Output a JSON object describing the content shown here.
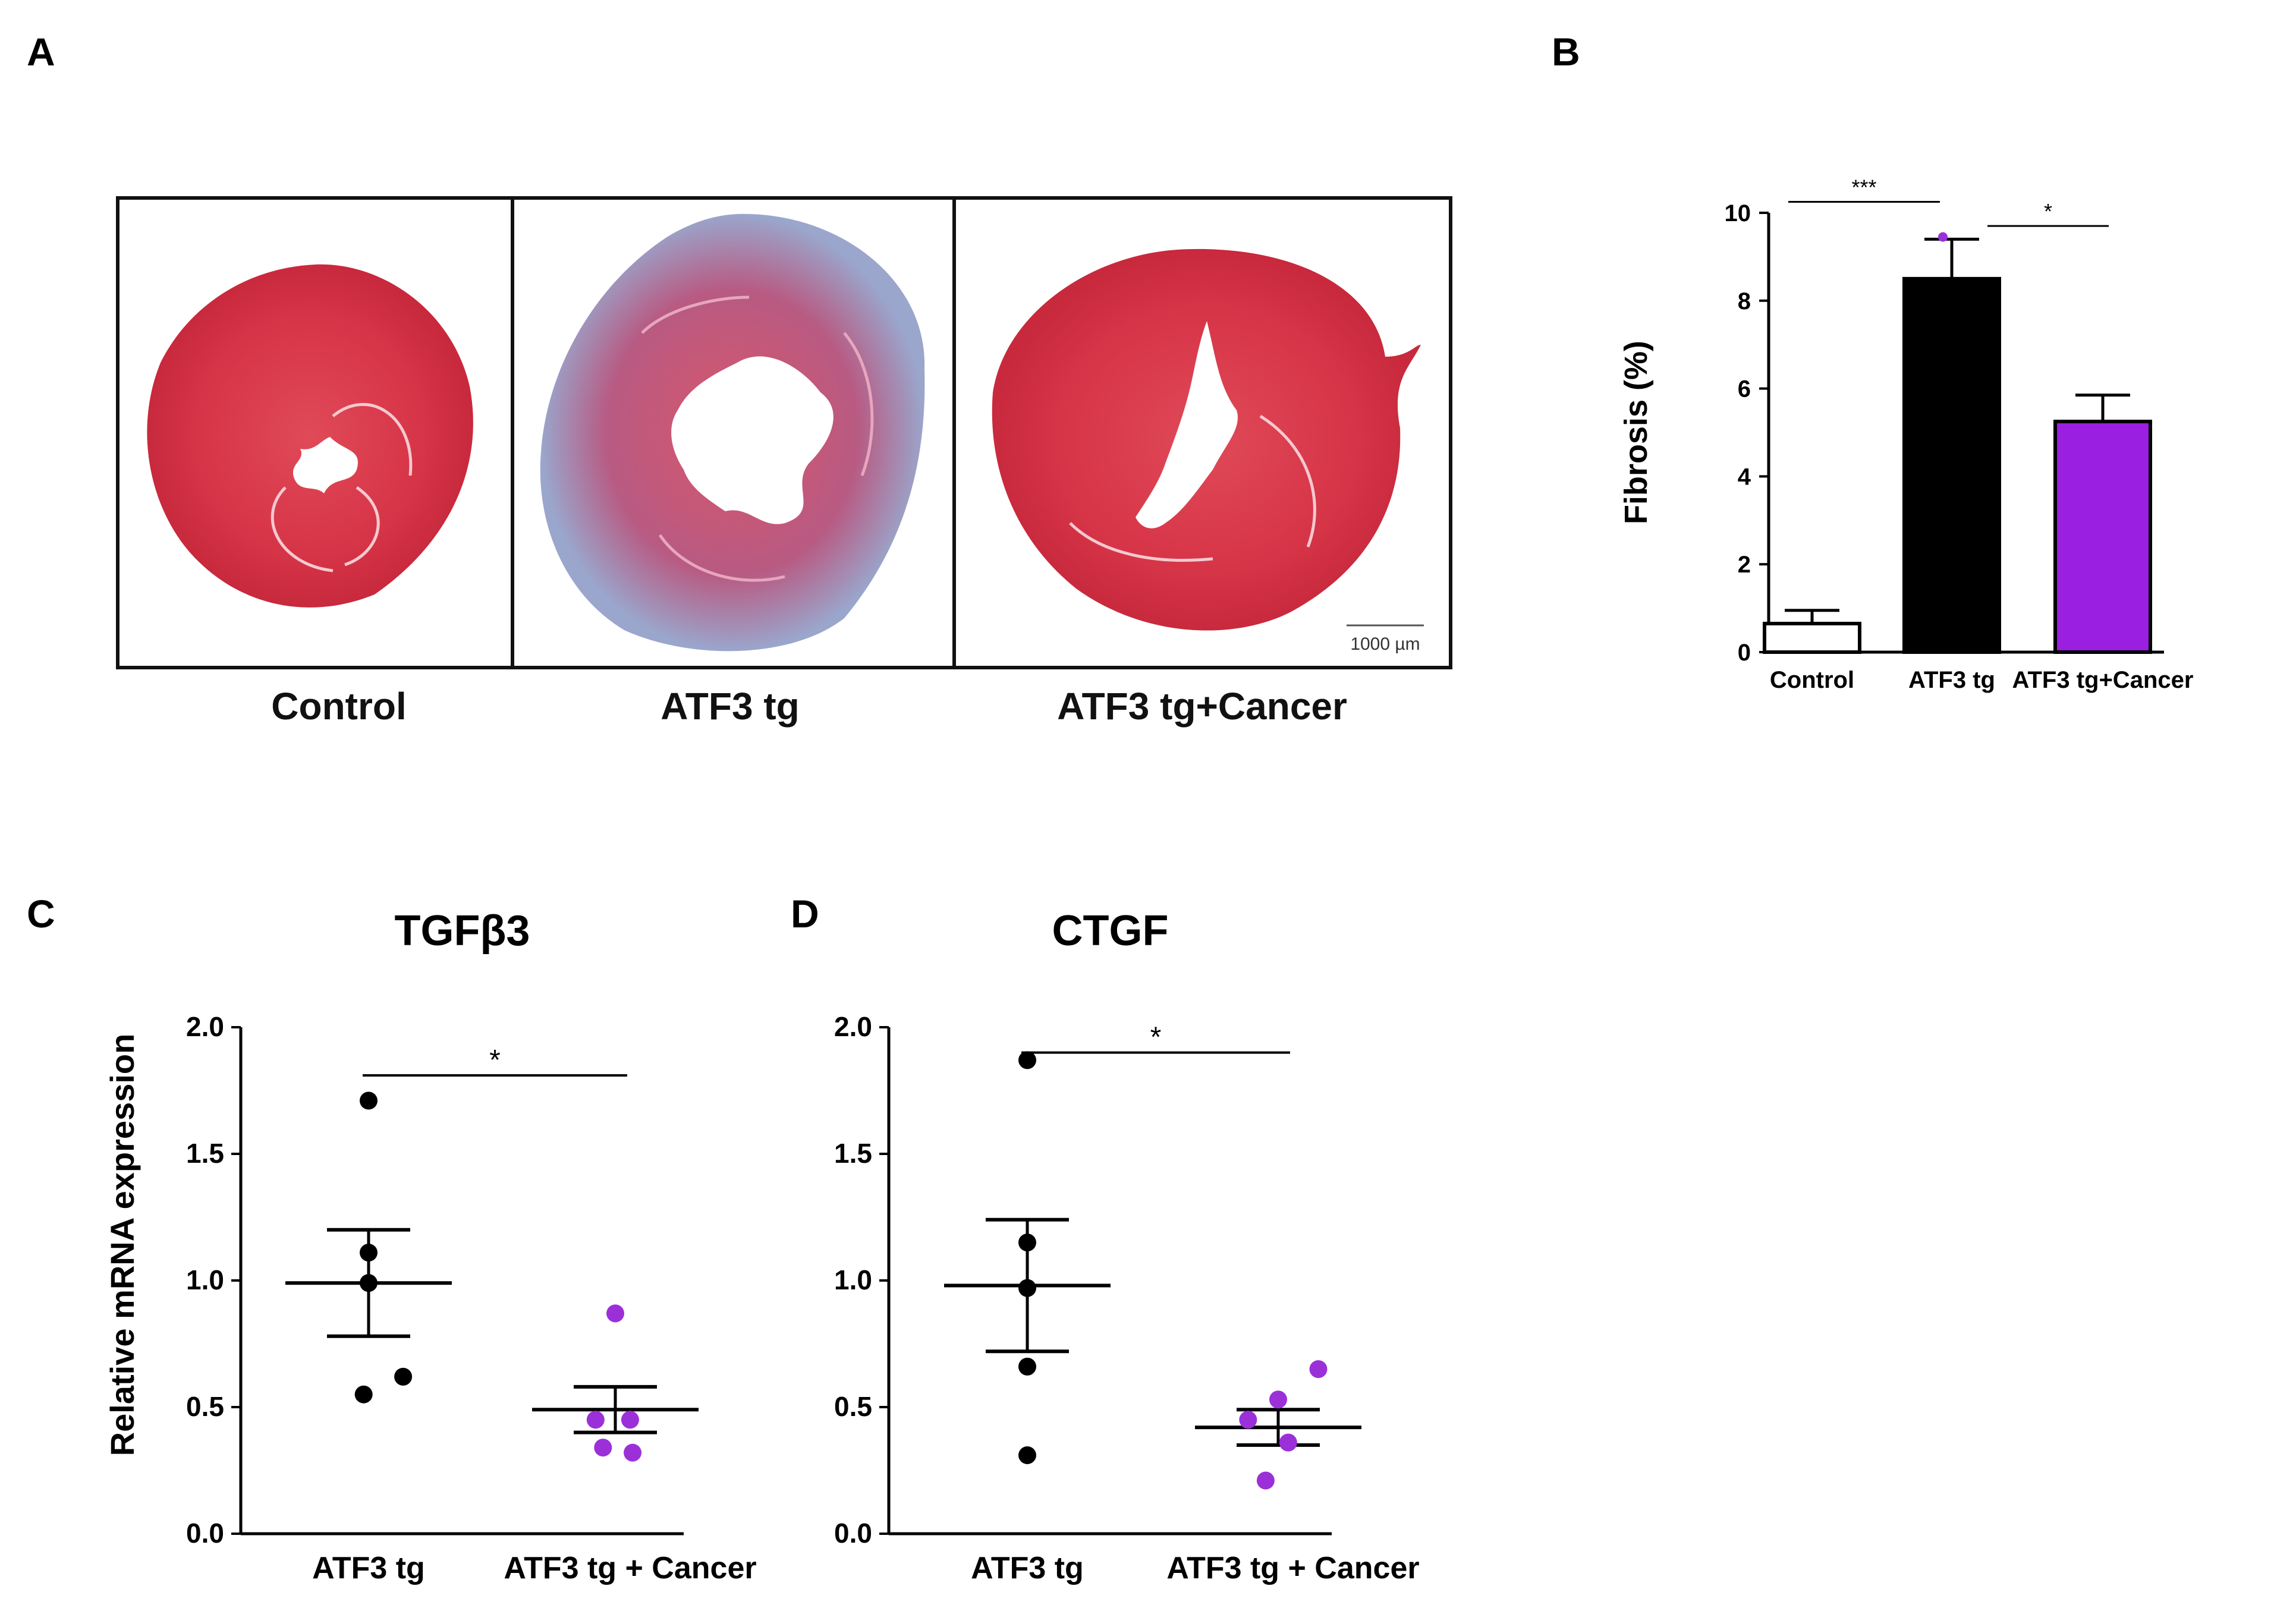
{
  "panels": {
    "a": {
      "letter": "A",
      "labels": [
        "Control",
        "ATF3 tg",
        "ATF3 tg+Cancer"
      ],
      "scale_bar": "1000 µm",
      "colors": {
        "tissue": "#d93a4a",
        "fibrosis": "#9aa6cc"
      }
    },
    "b": {
      "letter": "B"
    },
    "c": {
      "letter": "C"
    },
    "d": {
      "letter": "D"
    }
  },
  "chart_data": [
    {
      "id": "B",
      "type": "bar",
      "title": "",
      "xlabel": "",
      "ylabel": "Fibrosis (%)",
      "ylim": [
        0,
        10
      ],
      "yticks": [
        0,
        2,
        4,
        6,
        8,
        10
      ],
      "categories": [
        "Control",
        "ATF3 tg",
        "ATF3 tg+Cancer"
      ],
      "values": [
        0.65,
        8.5,
        5.25
      ],
      "errors": [
        0.3,
        0.9,
        0.6
      ],
      "colors": [
        "#ffffff",
        "#000000",
        "#9b1fe0"
      ],
      "annotations": [
        {
          "from": 0,
          "to": 1,
          "y": 10.25,
          "text": "***"
        },
        {
          "from": 1,
          "to": 2,
          "y": 9.7,
          "text": "*"
        }
      ]
    },
    {
      "id": "C",
      "type": "scatter",
      "title": "TGFβ3",
      "xlabel": "",
      "ylabel": "Relative mRNA expression",
      "ylim": [
        0,
        2
      ],
      "yticks": [
        "0.0",
        "0.5",
        "1.0",
        "1.5",
        "2.0"
      ],
      "categories": [
        "ATF3 tg",
        "ATF3 tg + Cancer"
      ],
      "series": [
        {
          "name": "ATF3 tg",
          "color": "#000000",
          "mean": 0.99,
          "sem": 0.21,
          "points": [
            [
              0,
              1.71
            ],
            [
              0,
              1.11
            ],
            [
              0,
              0.99
            ],
            [
              -0.02,
              0.55
            ],
            [
              0.14,
              0.62
            ]
          ]
        },
        {
          "name": "ATF3 tg + Cancer",
          "color": "#9b30d9",
          "mean": 0.49,
          "sem": 0.09,
          "points": [
            [
              1.0,
              0.87
            ],
            [
              0.92,
              0.45
            ],
            [
              1.06,
              0.45
            ],
            [
              0.95,
              0.34
            ],
            [
              1.07,
              0.32
            ]
          ]
        }
      ],
      "annotations": [
        {
          "from": 0,
          "to": 1,
          "y": 1.81,
          "text": "*"
        }
      ]
    },
    {
      "id": "D",
      "type": "scatter",
      "title": "CTGF",
      "xlabel": "",
      "ylabel": "",
      "ylim": [
        0,
        2
      ],
      "yticks": [
        "0.0",
        "0.5",
        "1.0",
        "1.5",
        "2.0"
      ],
      "categories": [
        "ATF3 tg",
        "ATF3 tg + Cancer"
      ],
      "series": [
        {
          "name": "ATF3 tg",
          "color": "#000000",
          "mean": 0.98,
          "sem": 0.26,
          "points": [
            [
              0,
              1.87
            ],
            [
              0,
              1.15
            ],
            [
              0,
              0.97
            ],
            [
              0,
              0.66
            ],
            [
              0,
              0.31
            ]
          ]
        },
        {
          "name": "ATF3 tg + Cancer",
          "color": "#9b30d9",
          "mean": 0.42,
          "sem": 0.07,
          "points": [
            [
              1.16,
              0.65
            ],
            [
              1.0,
              0.53
            ],
            [
              0.88,
              0.45
            ],
            [
              1.04,
              0.36
            ],
            [
              0.95,
              0.21
            ]
          ]
        }
      ],
      "annotations": [
        {
          "from": 0,
          "to": 1,
          "y": 1.9,
          "text": "*"
        }
      ]
    }
  ]
}
